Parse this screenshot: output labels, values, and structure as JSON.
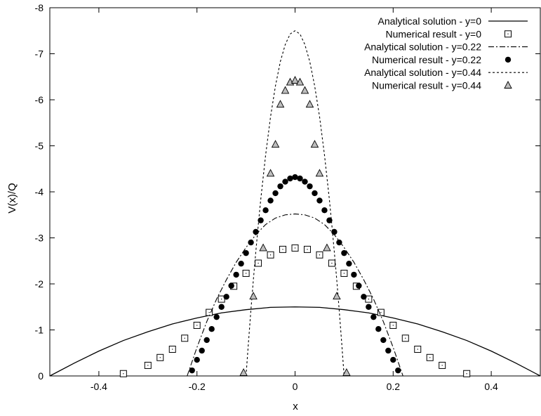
{
  "chart_data": {
    "type": "line",
    "title": "",
    "xlabel": "x",
    "ylabel": "V(x)/Q",
    "xlim": [
      -0.5,
      0.5
    ],
    "ylim": [
      0,
      -8
    ],
    "y_axis_inverted": true,
    "grid": false,
    "legend_position": "top-right",
    "x_ticks": [
      -0.4,
      -0.2,
      0,
      0.2,
      0.4
    ],
    "x_tick_labels": [
      "-0.4",
      "-0.2",
      "0",
      "0.2",
      "0.4"
    ],
    "y_ticks": [
      0,
      -1,
      -2,
      -3,
      -4,
      -5,
      -6,
      -7,
      -8
    ],
    "y_tick_labels": [
      "0",
      "-1",
      "-2",
      "-3",
      "-4",
      "-5",
      "-6",
      "-7",
      "-8"
    ],
    "series": [
      {
        "name": "Analytical solution - y=0",
        "kind": "line",
        "dash": "solid",
        "x": [
          -0.5,
          -0.45,
          -0.4,
          -0.35,
          -0.3,
          -0.25,
          -0.2,
          -0.15,
          -0.1,
          -0.05,
          0,
          0.05,
          0.1,
          0.15,
          0.2,
          0.25,
          0.3,
          0.35,
          0.4,
          0.45,
          0.5
        ],
        "y": [
          0,
          -0.28,
          -0.54,
          -0.77,
          -0.96,
          -1.13,
          -1.26,
          -1.37,
          -1.44,
          -1.49,
          -1.5,
          -1.49,
          -1.44,
          -1.37,
          -1.26,
          -1.13,
          -0.96,
          -0.77,
          -0.54,
          -0.28,
          0
        ]
      },
      {
        "name": "Numerical result - y=0",
        "kind": "points",
        "marker": "square",
        "x": [
          -0.35,
          -0.3,
          -0.275,
          -0.25,
          -0.225,
          -0.2,
          -0.175,
          -0.15,
          -0.125,
          -0.1,
          -0.075,
          -0.05,
          -0.025,
          0,
          0.025,
          0.05,
          0.075,
          0.1,
          0.125,
          0.15,
          0.175,
          0.2,
          0.225,
          0.25,
          0.275,
          0.3,
          0.35
        ],
        "y": [
          -0.05,
          -0.23,
          -0.4,
          -0.58,
          -0.82,
          -1.1,
          -1.38,
          -1.67,
          -1.95,
          -2.23,
          -2.45,
          -2.63,
          -2.75,
          -2.78,
          -2.75,
          -2.63,
          -2.45,
          -2.23,
          -1.95,
          -1.67,
          -1.38,
          -1.1,
          -0.82,
          -0.58,
          -0.4,
          -0.23,
          -0.05
        ]
      },
      {
        "name": "Analytical solution - y=0.22",
        "kind": "line",
        "dash": "dashdot",
        "x": [
          -0.22,
          -0.2,
          -0.18,
          -0.16,
          -0.14,
          -0.12,
          -0.1,
          -0.08,
          -0.06,
          -0.04,
          -0.02,
          0,
          0.02,
          0.04,
          0.06,
          0.08,
          0.1,
          0.12,
          0.14,
          0.16,
          0.18,
          0.2,
          0.22
        ],
        "y": [
          0,
          -0.62,
          -1.18,
          -1.67,
          -2.09,
          -2.47,
          -2.79,
          -3.07,
          -3.29,
          -3.43,
          -3.5,
          -3.52,
          -3.5,
          -3.43,
          -3.29,
          -3.07,
          -2.79,
          -2.47,
          -2.09,
          -1.67,
          -1.18,
          -0.62,
          0
        ]
      },
      {
        "name": "Numerical result - y=0.22",
        "kind": "points",
        "marker": "filled-circle",
        "x": [
          -0.21,
          -0.2,
          -0.19,
          -0.18,
          -0.17,
          -0.16,
          -0.15,
          -0.14,
          -0.13,
          -0.12,
          -0.11,
          -0.1,
          -0.09,
          -0.08,
          -0.07,
          -0.06,
          -0.05,
          -0.04,
          -0.03,
          -0.02,
          -0.01,
          0,
          0.01,
          0.02,
          0.03,
          0.04,
          0.05,
          0.06,
          0.07,
          0.08,
          0.09,
          0.1,
          0.11,
          0.12,
          0.13,
          0.14,
          0.15,
          0.16,
          0.17,
          0.18,
          0.19,
          0.2,
          0.21
        ],
        "y": [
          -0.12,
          -0.35,
          -0.55,
          -0.78,
          -1.02,
          -1.28,
          -1.5,
          -1.72,
          -1.96,
          -2.2,
          -2.44,
          -2.67,
          -2.9,
          -3.13,
          -3.38,
          -3.6,
          -3.81,
          -3.97,
          -4.12,
          -4.22,
          -4.29,
          -4.32,
          -4.29,
          -4.22,
          -4.12,
          -3.97,
          -3.81,
          -3.6,
          -3.38,
          -3.13,
          -2.9,
          -2.67,
          -2.44,
          -2.2,
          -1.96,
          -1.72,
          -1.5,
          -1.28,
          -1.02,
          -0.78,
          -0.55,
          -0.35,
          -0.12
        ]
      },
      {
        "name": "Analytical solution - y=0.44",
        "kind": "line",
        "dash": "dotted",
        "x": [
          -0.1,
          -0.095,
          -0.09,
          -0.085,
          -0.08,
          -0.075,
          -0.07,
          -0.06,
          -0.05,
          -0.04,
          -0.03,
          -0.02,
          -0.01,
          0,
          0.01,
          0.02,
          0.03,
          0.04,
          0.05,
          0.06,
          0.07,
          0.075,
          0.08,
          0.085,
          0.09,
          0.095,
          0.1
        ],
        "y": [
          0,
          -0.73,
          -1.43,
          -2.09,
          -2.7,
          -3.28,
          -3.83,
          -4.8,
          -5.63,
          -6.3,
          -6.83,
          -7.2,
          -7.43,
          -7.5,
          -7.43,
          -7.2,
          -6.83,
          -6.3,
          -5.63,
          -4.8,
          -3.83,
          -3.28,
          -2.7,
          -2.09,
          -1.43,
          -0.73,
          0
        ]
      },
      {
        "name": "Numerical result - y=0.44",
        "kind": "points",
        "marker": "triangle",
        "x": [
          -0.105,
          -0.085,
          -0.065,
          -0.05,
          -0.04,
          -0.03,
          -0.02,
          -0.01,
          0,
          0.01,
          0.02,
          0.03,
          0.04,
          0.05,
          0.065,
          0.085,
          0.105
        ],
        "y": [
          -0.07,
          -1.73,
          -2.78,
          -4.4,
          -5.03,
          -5.9,
          -6.2,
          -6.38,
          -6.42,
          -6.38,
          -6.2,
          -5.9,
          -5.03,
          -4.4,
          -2.78,
          -1.73,
          -0.07
        ]
      }
    ]
  }
}
